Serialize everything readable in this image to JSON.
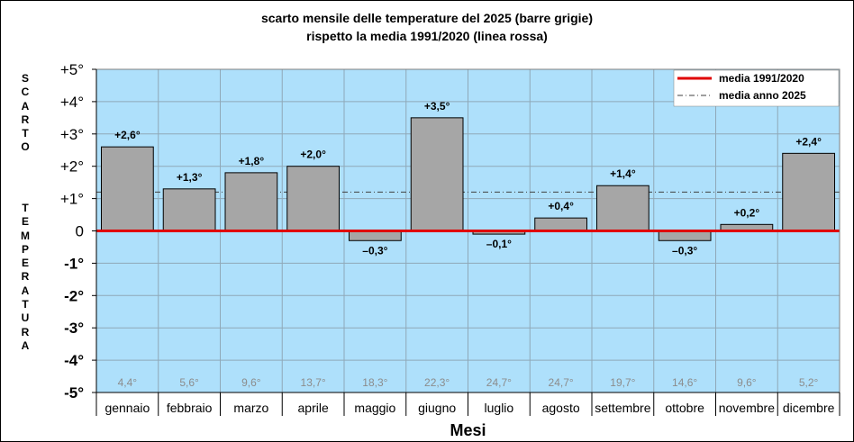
{
  "chart_data": {
    "type": "bar",
    "title_line1": "scarto mensile delle temperature del 2025 (barre grigie)",
    "title_line2": "rispetto la media 1991/2020 (linea rossa)",
    "ylabel_top": "SCARTO",
    "ylabel_bottom": "TEMPERATURA",
    "xlabel": "Mesi",
    "categories": [
      "gennaio",
      "febbraio",
      "marzo",
      "aprile",
      "maggio",
      "giugno",
      "luglio",
      "agosto",
      "settembre",
      "ottobre",
      "novembre",
      "dicembre"
    ],
    "values": [
      2.6,
      1.3,
      1.8,
      2.0,
      -0.3,
      3.5,
      -0.1,
      0.4,
      1.4,
      -0.3,
      0.2,
      2.4
    ],
    "value_labels": [
      "+2,6°",
      "+1,3°",
      "+1,8°",
      "+2,0°",
      "–0,3°",
      "+3,5°",
      "–0,1°",
      "+0,4°",
      "+1,4°",
      "–0,3°",
      "+0,2°",
      "+2,4°"
    ],
    "monthly_means": [
      "4,4°",
      "5,6°",
      "9,6°",
      "13,7°",
      "18,3°",
      "22,3°",
      "24,7°",
      "24,7°",
      "19,7°",
      "14,6°",
      "9,6°",
      "5,2°"
    ],
    "ylim": [
      -5,
      5
    ],
    "yticks": [
      5,
      4,
      3,
      2,
      1,
      0,
      -1,
      -2,
      -3,
      -4,
      -5
    ],
    "ytick_labels": [
      "+5°",
      "+4°",
      "+3°",
      "+2°",
      "+1°",
      "0",
      "-1°",
      "-2°",
      "-3°",
      "-4°",
      "-5°"
    ],
    "annual_mean": 1.2,
    "grid": true,
    "legend_position": "top-right",
    "legend": [
      {
        "name": "media 1991/2020",
        "style": "solid",
        "color": "#e00000"
      },
      {
        "name": "media anno 2025",
        "style": "dash-dot",
        "color": "#404040"
      }
    ],
    "colors": {
      "plot_bg": "#aee0fb",
      "bar": "#a6a6a6",
      "baseline": "#e00000",
      "grid": "#8fa8b8"
    }
  }
}
